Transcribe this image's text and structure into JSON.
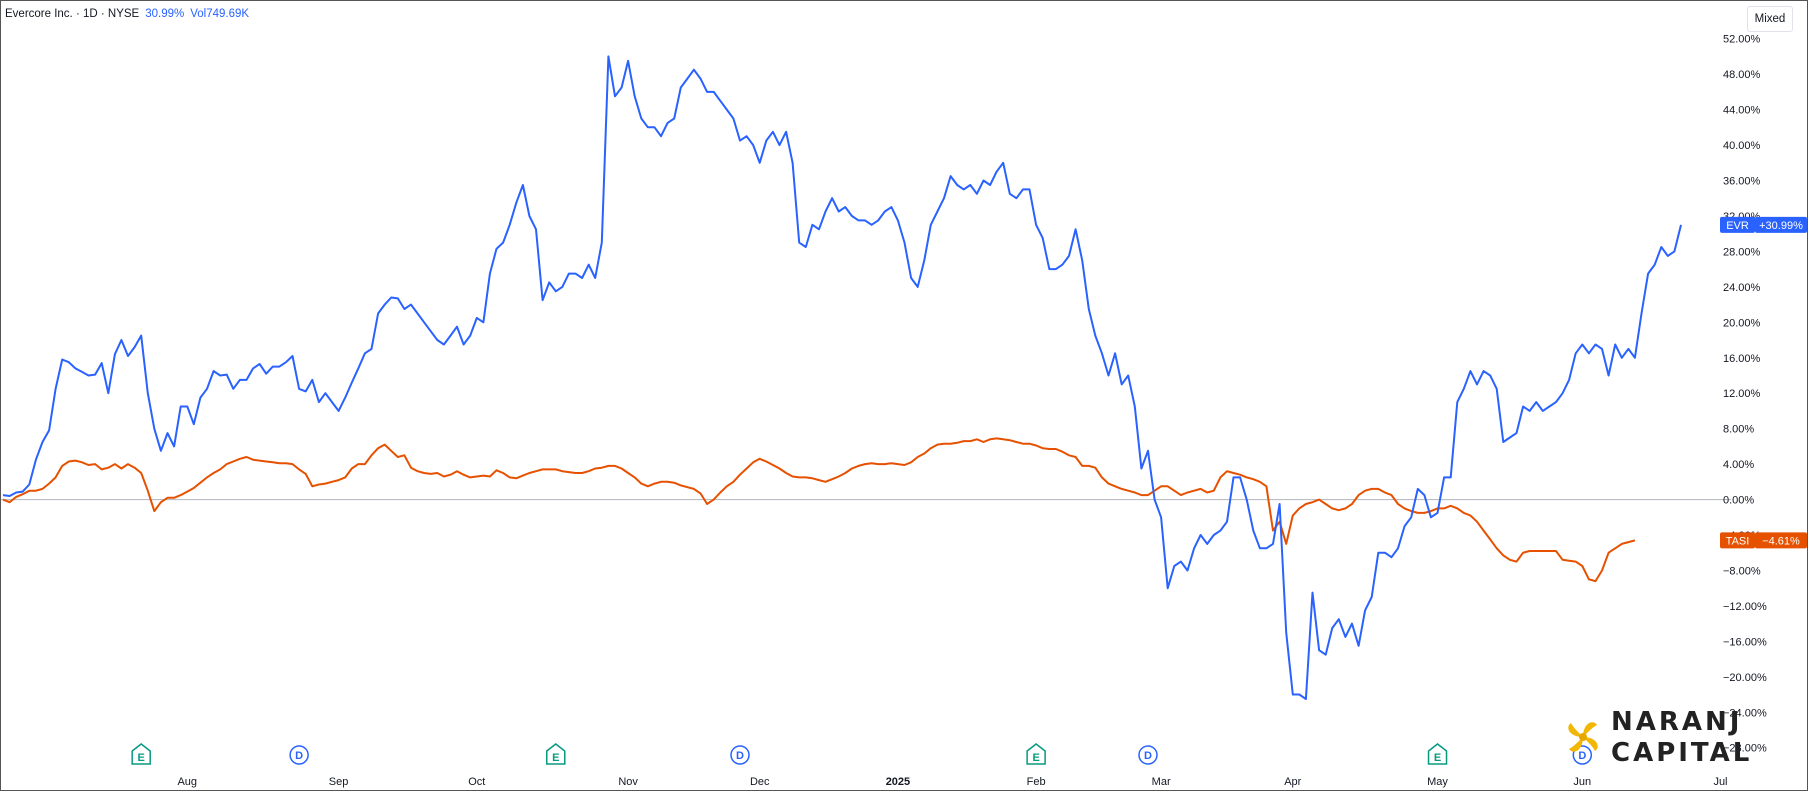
{
  "header": {
    "title": "Evercore Inc. · 1D · NYSE",
    "change": "30.99%",
    "volume": "Vol749.69K"
  },
  "mode_button": "Mixed",
  "logo": {
    "line1": "NARANJ",
    "line2": "CAPITAL"
  },
  "chart_data": {
    "type": "line",
    "y_unit": "%",
    "ylim": [
      -29.5,
      54
    ],
    "y_ticks": [
      "52.00%",
      "48.00%",
      "44.00%",
      "40.00%",
      "36.00%",
      "32.00%",
      "28.00%",
      "24.00%",
      "20.00%",
      "16.00%",
      "12.00%",
      "8.00%",
      "4.00%",
      "0.00%",
      "−4.00%",
      "−8.00%",
      "−12.00%",
      "−16.00%",
      "−20.00%",
      "−24.00%",
      "−28.00%"
    ],
    "x_labels": [
      {
        "label": "Aug",
        "index": 28,
        "bold": false
      },
      {
        "label": "Sep",
        "index": 51,
        "bold": false
      },
      {
        "label": "Oct",
        "index": 72,
        "bold": false
      },
      {
        "label": "Nov",
        "index": 95,
        "bold": false
      },
      {
        "label": "Dec",
        "index": 115,
        "bold": false
      },
      {
        "label": "2025",
        "index": 136,
        "bold": true
      },
      {
        "label": "Feb",
        "index": 157,
        "bold": false
      },
      {
        "label": "Mar",
        "index": 176,
        "bold": false
      },
      {
        "label": "Apr",
        "index": 196,
        "bold": false
      },
      {
        "label": "May",
        "index": 218,
        "bold": false
      },
      {
        "label": "Jun",
        "index": 240,
        "bold": false
      },
      {
        "label": "Jul",
        "index": 261,
        "bold": false
      }
    ],
    "event_markers": [
      {
        "type": "E",
        "index": 21
      },
      {
        "type": "D",
        "index": 45
      },
      {
        "type": "E",
        "index": 84
      },
      {
        "type": "D",
        "index": 112
      },
      {
        "type": "E",
        "index": 157
      },
      {
        "type": "D",
        "index": 174
      },
      {
        "type": "E",
        "index": 218
      },
      {
        "type": "D",
        "index": 240
      }
    ],
    "series": [
      {
        "name": "EVR",
        "color": "#2962ff",
        "last_label": "+30.99%",
        "values": [
          0.5,
          0.4,
          0.8,
          0.9,
          1.7,
          4.5,
          6.5,
          7.8,
          12.5,
          15.8,
          15.5,
          14.8,
          14.4,
          14.0,
          14.1,
          15.4,
          12.0,
          16.4,
          18.0,
          16.2,
          17.2,
          18.5,
          12.0,
          8.0,
          5.5,
          7.5,
          6.0,
          10.5,
          10.5,
          8.5,
          11.5,
          12.5,
          14.5,
          14.0,
          14.1,
          12.5,
          13.5,
          13.5,
          14.8,
          15.3,
          14.2,
          15.0,
          15.0,
          15.5,
          16.2,
          12.5,
          12.2,
          13.5,
          11.0,
          12.0,
          11.0,
          10.0,
          11.5,
          13.2,
          14.8,
          16.5,
          17.0,
          21.0,
          22.0,
          22.8,
          22.7,
          21.5,
          22.0,
          21.0,
          20.0,
          19.0,
          18.0,
          17.5,
          18.5,
          19.5,
          17.5,
          18.5,
          20.5,
          20.0,
          25.5,
          28.3,
          29.0,
          31.0,
          33.5,
          35.5,
          32.0,
          30.5,
          22.5,
          24.5,
          23.5,
          24.0,
          25.5,
          25.5,
          25.0,
          26.5,
          25.0,
          29.0,
          50.0,
          45.5,
          46.5,
          49.5,
          45.5,
          43.0,
          42.0,
          42.0,
          41.0,
          42.5,
          43.0,
          46.5,
          47.5,
          48.5,
          47.5,
          46.0,
          46.0,
          45.0,
          44.0,
          43.0,
          40.5,
          41.0,
          40.0,
          38.0,
          40.5,
          41.5,
          40.0,
          41.5,
          38.0,
          29.0,
          28.5,
          31.0,
          30.5,
          32.5,
          34.0,
          32.5,
          33.0,
          32.0,
          31.5,
          31.5,
          31.0,
          31.5,
          32.5,
          33.0,
          31.5,
          29.0,
          25.0,
          24.0,
          27.0,
          31.0,
          32.5,
          34.0,
          36.5,
          35.5,
          35.0,
          35.5,
          34.5,
          36.0,
          35.5,
          37.0,
          38.0,
          34.5,
          34.0,
          35.0,
          35.0,
          31.0,
          29.5,
          26.0,
          26.0,
          26.5,
          27.5,
          30.5,
          27.0,
          21.5,
          18.5,
          16.5,
          14.0,
          16.5,
          13.0,
          14.0,
          10.5,
          3.5,
          5.5,
          0.0,
          -2.0,
          -10.0,
          -7.5,
          -7.0,
          -8.0,
          -5.5,
          -4.0,
          -5.0,
          -4.0,
          -3.5,
          -2.5,
          2.5,
          2.5,
          0.0,
          -3.5,
          -5.5,
          -5.5,
          -5.0,
          -0.5,
          -15.0,
          -22.0,
          -22.0,
          -22.5,
          -10.5,
          -17.0,
          -17.5,
          -14.5,
          -13.5,
          -15.5,
          -14.0,
          -16.5,
          -12.5,
          -11.0,
          -6.0,
          -6.0,
          -6.5,
          -5.5,
          -3.0,
          -2.0,
          1.2,
          0.5,
          -2.0,
          -1.5,
          2.5,
          2.5,
          11.0,
          12.5,
          14.5,
          13.0,
          14.5,
          14.0,
          12.5,
          6.5,
          7.0,
          7.5,
          10.5,
          10.0,
          11.0,
          10.0,
          10.5,
          11.0,
          12.0,
          13.5,
          16.5,
          17.5,
          16.5,
          17.5,
          17.0,
          14.0,
          17.5,
          16.0,
          17.0,
          16.0,
          21.0,
          25.5,
          26.5,
          28.5,
          27.5,
          28.0,
          30.99
        ]
      },
      {
        "name": "TASI",
        "color": "#e65100",
        "last_label": "−4.61%",
        "values": [
          0.0,
          -0.3,
          0.3,
          0.6,
          1.0,
          1.0,
          1.2,
          1.8,
          2.5,
          3.8,
          4.3,
          4.4,
          4.2,
          3.9,
          4.0,
          3.4,
          3.6,
          4.0,
          3.5,
          4.0,
          3.6,
          3.0,
          1.0,
          -1.3,
          -0.3,
          0.2,
          0.2,
          0.5,
          0.9,
          1.3,
          1.9,
          2.5,
          3.0,
          3.4,
          4.0,
          4.3,
          4.6,
          4.8,
          4.5,
          4.4,
          4.3,
          4.2,
          4.1,
          4.1,
          4.0,
          3.4,
          2.9,
          1.5,
          1.7,
          1.8,
          2.0,
          2.2,
          2.5,
          3.5,
          4.0,
          4.0,
          5.0,
          5.8,
          6.2,
          5.5,
          4.8,
          5.0,
          3.6,
          3.2,
          3.0,
          2.9,
          3.0,
          2.6,
          2.8,
          3.2,
          2.8,
          2.5,
          2.6,
          2.7,
          2.6,
          3.3,
          3.0,
          2.5,
          2.4,
          2.7,
          3.0,
          3.2,
          3.4,
          3.4,
          3.4,
          3.2,
          3.1,
          3.0,
          3.0,
          3.2,
          3.5,
          3.6,
          3.8,
          3.8,
          3.5,
          3.0,
          2.5,
          1.8,
          1.5,
          1.8,
          2.0,
          2.0,
          1.9,
          1.6,
          1.4,
          1.2,
          0.7,
          -0.5,
          0.0,
          0.8,
          1.5,
          2.0,
          2.8,
          3.5,
          4.2,
          4.6,
          4.3,
          3.9,
          3.5,
          3.0,
          2.6,
          2.5,
          2.5,
          2.4,
          2.2,
          2.0,
          2.3,
          2.6,
          3.0,
          3.5,
          3.8,
          4.0,
          4.1,
          4.0,
          4.0,
          4.1,
          4.0,
          3.9,
          4.2,
          4.8,
          5.2,
          5.8,
          6.2,
          6.3,
          6.3,
          6.4,
          6.6,
          6.6,
          6.8,
          6.5,
          6.8,
          6.9,
          6.8,
          6.7,
          6.5,
          6.3,
          6.3,
          6.1,
          5.8,
          5.7,
          5.7,
          5.4,
          5.0,
          4.8,
          3.8,
          3.8,
          3.6,
          2.5,
          1.8,
          1.5,
          1.2,
          1.0,
          0.8,
          0.5,
          0.5,
          1.0,
          1.5,
          1.5,
          1.0,
          0.5,
          0.8,
          1.0,
          1.2,
          0.8,
          1.0,
          2.5,
          3.2,
          3.0,
          2.8,
          2.5,
          2.3,
          2.0,
          1.5,
          -3.5,
          -2.5,
          -5.0,
          -1.8,
          -1.0,
          -0.5,
          -0.3,
          0.0,
          -0.5,
          -1.0,
          -1.2,
          -1.0,
          -0.5,
          0.5,
          1.0,
          1.2,
          1.2,
          0.8,
          0.5,
          -0.5,
          -1.0,
          -1.3,
          -1.5,
          -1.5,
          -1.3,
          -1.0,
          -1.0,
          -0.7,
          -1.0,
          -1.5,
          -1.8,
          -2.5,
          -3.5,
          -4.5,
          -5.5,
          -6.3,
          -6.8,
          -7.0,
          -6.0,
          -5.8,
          -5.8,
          -5.8,
          -5.8,
          -5.8,
          -6.8,
          -6.9,
          -7.0,
          -7.5,
          -9.0,
          -9.2,
          -8.0,
          -6.0,
          -5.5,
          -5.0,
          -4.8,
          -4.61
        ]
      }
    ]
  }
}
